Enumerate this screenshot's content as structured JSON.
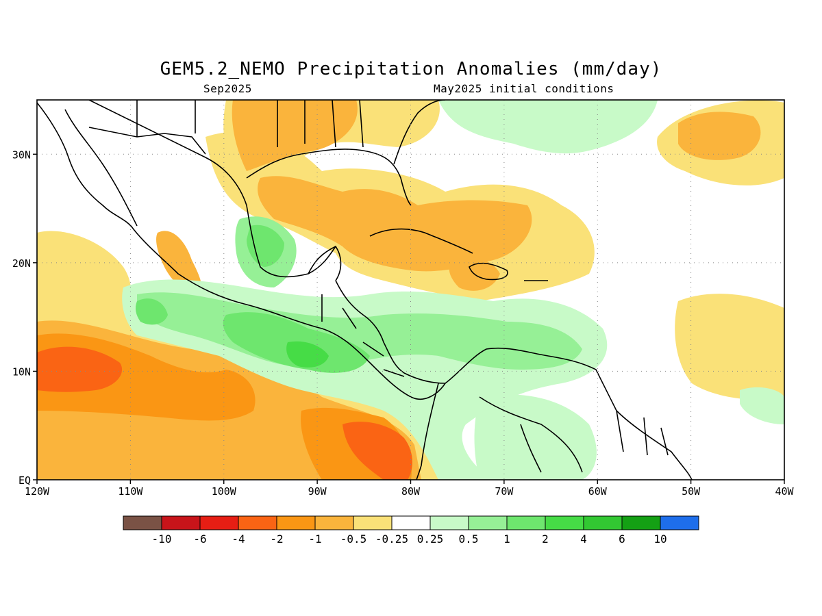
{
  "title": "GEM5.2_NEMO Precipitation Anomalies (mm/day)",
  "subtitle_left": "Sep2025",
  "subtitle_right": "May2025 initial conditions",
  "map": {
    "lon_range": [
      -120,
      -40
    ],
    "lat_range": [
      0,
      35
    ],
    "lon_ticks": [
      "120W",
      "110W",
      "100W",
      "90W",
      "80W",
      "70W",
      "60W",
      "50W",
      "40W"
    ],
    "lat_ticks": [
      "EQ",
      "10N",
      "20N",
      "30N"
    ],
    "grid": "dotted",
    "coastline_color": "#000000"
  },
  "colorbar": {
    "labels": [
      "-10",
      "-6",
      "-4",
      "-2",
      "-1",
      "-0.5",
      "-0.25",
      "0.25",
      "0.5",
      "1",
      "2",
      "4",
      "6",
      "10"
    ],
    "colors": [
      "#7a5245",
      "#c8141a",
      "#e61e14",
      "#fa6414",
      "#fa9614",
      "#fab43c",
      "#fae178",
      "#ffffff",
      "#c8fac8",
      "#96f096",
      "#6ee66e",
      "#46dc46",
      "#32c832",
      "#14a014",
      "#1e6eeb"
    ]
  },
  "anomaly_regions": [
    {
      "category": "-4",
      "color": "#fa6414",
      "description": "eastern Pacific ITCZ west"
    },
    {
      "category": "-4",
      "color": "#fa6414",
      "description": "off Colombia coast"
    },
    {
      "category": "-2",
      "color": "#fa9614",
      "description": "eastern Pacific band"
    },
    {
      "category": "-1",
      "color": "#fab43c",
      "description": "Gulf of Mexico / Caribbean"
    },
    {
      "category": "1",
      "color": "#96f096",
      "description": "Central America"
    },
    {
      "category": "2",
      "color": "#6ee66e",
      "description": "Gulf of Honduras / Yucatan"
    }
  ]
}
